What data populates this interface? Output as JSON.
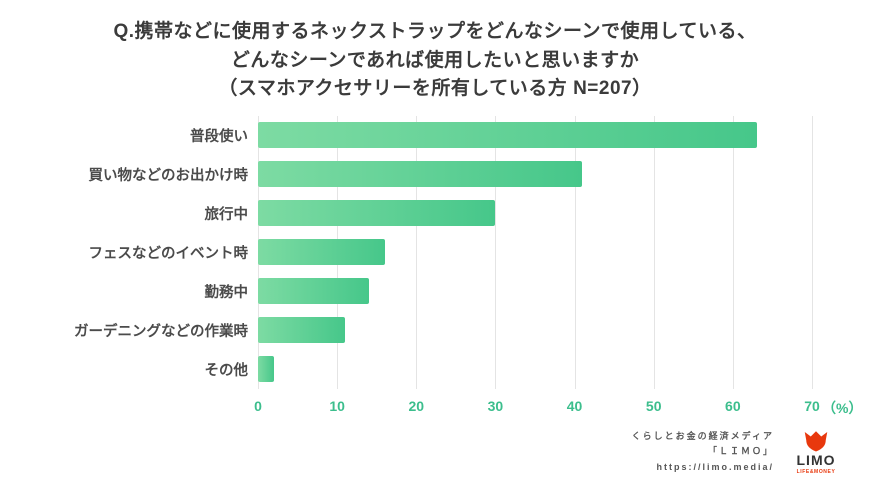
{
  "title": {
    "line1": "Q.携帯などに使用するネックストラップをどんなシーンで使用している、",
    "line2": "どんなシーンであれば使用したいと思いますか",
    "line3": "（スマホアクセサリーを所有している方 N=207）"
  },
  "chart_data": {
    "type": "bar",
    "orientation": "horizontal",
    "title": "Q.携帯などに使用するネックストラップをどんなシーンで使用している、どんなシーンであれば使用したいと思いますか（スマホアクセサリーを所有している方 N=207）",
    "categories": [
      "普段使い",
      "買い物などのお出かけ時",
      "旅行中",
      "フェスなどのイベント時",
      "勤務中",
      "ガーデニングなどの作業時",
      "その他"
    ],
    "values": [
      63,
      41,
      30,
      16,
      14,
      11,
      2
    ],
    "xlim": [
      0,
      70
    ],
    "ticks": [
      0,
      10,
      20,
      30,
      40,
      50,
      60,
      70
    ],
    "unit_label": "（%）",
    "grid": true,
    "legend": false,
    "xlabel": "",
    "ylabel": "",
    "colors": {
      "bar_start": "#7DDBA3",
      "bar_end": "#46C78A",
      "tick": "#3CBE8D",
      "grid": "#E4E4E4",
      "category_label": "#4B4B4B",
      "title": "#3B3B3B"
    }
  },
  "footer": {
    "tagline": "くらしとお金の経済メディア",
    "brand_line": "「ＬＩＭＯ」",
    "url": "https://limo.media/",
    "logo_text": "LIMO",
    "logo_subtext": "LIFE&MONEY",
    "logo_color": "#E8380D"
  }
}
